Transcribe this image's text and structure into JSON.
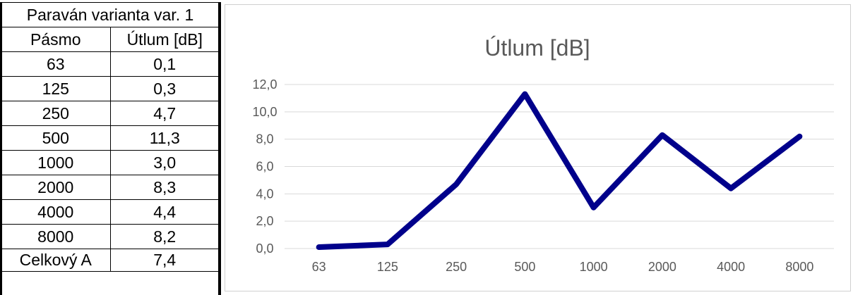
{
  "table": {
    "title": "Paraván varianta var. 1",
    "header": [
      "Pásmo",
      "Útlum [dB]"
    ],
    "rows": [
      [
        "63",
        "0,1"
      ],
      [
        "125",
        "0,3"
      ],
      [
        "250",
        "4,7"
      ],
      [
        "500",
        "11,3"
      ],
      [
        "1000",
        "3,0"
      ],
      [
        "2000",
        "8,3"
      ],
      [
        "4000",
        "4,4"
      ],
      [
        "8000",
        "8,2"
      ],
      [
        "Celkový A",
        "7,4"
      ]
    ]
  },
  "chart_data": {
    "type": "line",
    "title": "Útlum [dB]",
    "categories": [
      "63",
      "125",
      "250",
      "500",
      "1000",
      "2000",
      "4000",
      "8000"
    ],
    "values": [
      0.1,
      0.3,
      4.7,
      11.3,
      3.0,
      8.3,
      4.4,
      8.2
    ],
    "yticks": [
      "0,0",
      "2,0",
      "4,0",
      "6,0",
      "8,0",
      "10,0",
      "12,0"
    ],
    "ylim": [
      0,
      12
    ],
    "grid": true,
    "line_color": "#00008B",
    "grid_color": "#d9d9d9"
  }
}
